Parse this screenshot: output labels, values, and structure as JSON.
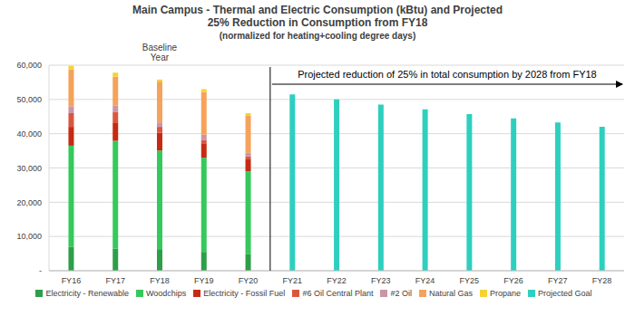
{
  "chart_data": {
    "type": "bar",
    "title": "Main Campus - Thermal and Electric Consumption (kBtu) and Projected 25% Reduction in Consumption from FY18",
    "subtitle": "(normalized for heating+cooling degree days)",
    "annotations": [
      {
        "text": "Baseline Year",
        "x": "FY18"
      },
      {
        "text": "Projected reduction of 25% in total consumption by 2028 from FY18",
        "x": "FY21"
      }
    ],
    "categories": [
      "FY16",
      "FY17",
      "FY18",
      "FY19",
      "FY20",
      "FY21",
      "FY22",
      "FY23",
      "FY24",
      "FY25",
      "FY26",
      "FY27",
      "FY28"
    ],
    "series": [
      {
        "name": "Electricity - Renewable",
        "color": "#2e9e48",
        "values": [
          7000,
          6500,
          6300,
          5500,
          4800,
          null,
          null,
          null,
          null,
          null,
          null,
          null,
          null
        ]
      },
      {
        "name": "Woodchips",
        "color": "#35c95c",
        "values": [
          29500,
          31400,
          28800,
          27500,
          24200,
          null,
          null,
          null,
          null,
          null,
          null,
          null,
          null
        ]
      },
      {
        "name": "Electricity - Fossil Fuel",
        "color": "#c62a12",
        "values": [
          5500,
          5200,
          5200,
          4200,
          3500,
          null,
          null,
          null,
          null,
          null,
          null,
          null,
          null
        ]
      },
      {
        "name": "#6 Oil Central Plant",
        "color": "#d9573f",
        "values": [
          4000,
          3300,
          1700,
          1000,
          900,
          null,
          null,
          null,
          null,
          null,
          null,
          null,
          null
        ]
      },
      {
        "name": "#2 Oil",
        "color": "#c896a8",
        "values": [
          2000,
          1800,
          1300,
          1500,
          1000,
          null,
          null,
          null,
          null,
          null,
          null,
          null,
          null
        ]
      },
      {
        "name": "Natural Gas",
        "color": "#f5a25a",
        "values": [
          10800,
          8400,
          11900,
          12500,
          10800,
          null,
          null,
          null,
          null,
          null,
          null,
          null,
          null
        ]
      },
      {
        "name": "Propane",
        "color": "#f4d332",
        "values": [
          1000,
          1200,
          600,
          800,
          800,
          null,
          null,
          null,
          null,
          null,
          null,
          null,
          null
        ]
      },
      {
        "name": "Projected Goal",
        "color": "#2ecfbf",
        "values": [
          null,
          null,
          null,
          null,
          null,
          51500,
          50000,
          48500,
          47100,
          45700,
          44500,
          43300,
          42000
        ]
      }
    ],
    "stacked": true,
    "ylim": [
      0,
      60000
    ],
    "yticks": [
      {
        "value": 0,
        "label": "-"
      },
      {
        "value": 10000,
        "label": "10,000"
      },
      {
        "value": 20000,
        "label": "20,000"
      },
      {
        "value": 30000,
        "label": "30,000"
      },
      {
        "value": 40000,
        "label": "40,000"
      },
      {
        "value": 50000,
        "label": "50,000"
      },
      {
        "value": 60000,
        "label": "60,000"
      }
    ],
    "grid": true,
    "legend": "bottom"
  }
}
